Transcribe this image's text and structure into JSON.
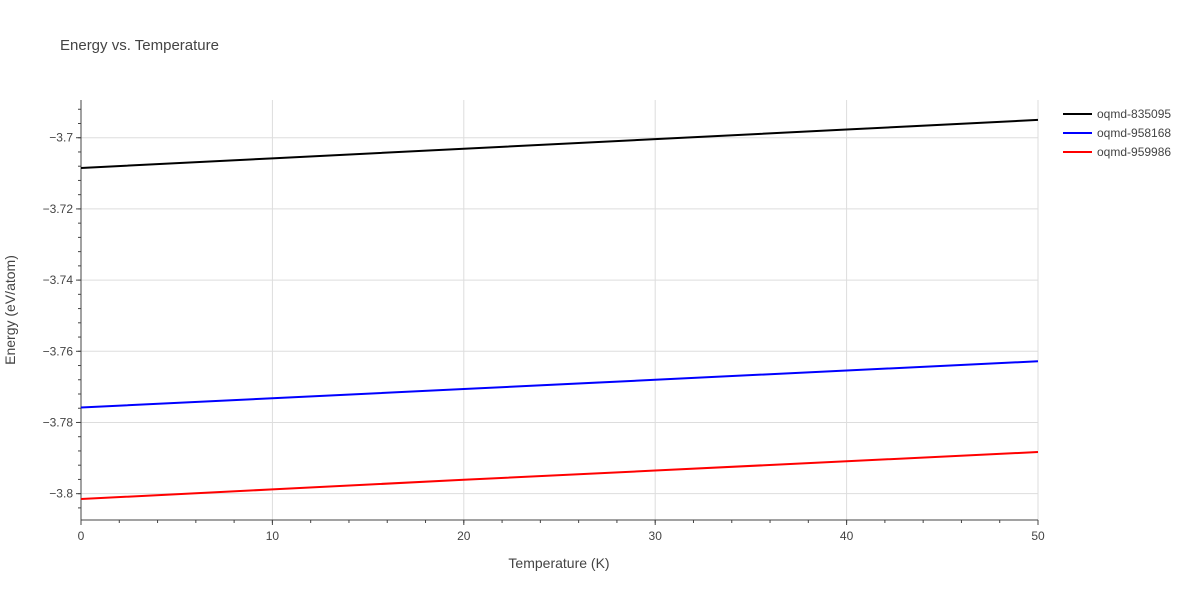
{
  "chart_data": {
    "type": "line",
    "title": "Energy vs. Temperature",
    "xlabel": "Temperature (K)",
    "ylabel": "Energy (eV/atom)",
    "xlim": [
      0,
      50
    ],
    "ylim": [
      -3.8074,
      -3.6894
    ],
    "x_ticks": [
      0,
      10,
      20,
      30,
      40,
      50
    ],
    "x_tick_labels": [
      "0",
      "10",
      "20",
      "30",
      "40",
      "50"
    ],
    "y_ticks": [
      -3.7,
      -3.72,
      -3.74,
      -3.76,
      -3.78,
      -3.8
    ],
    "y_tick_labels": [
      "−3.7",
      "−3.72",
      "−3.74",
      "−3.76",
      "−3.78",
      "−3.8"
    ],
    "grid": true,
    "legend_position": "top-right",
    "series": [
      {
        "name": "oqmd-835095",
        "color": "#000000",
        "x": [
          0,
          10,
          20,
          30,
          40,
          50
        ],
        "values": [
          -3.7085,
          -3.7058,
          -3.7031,
          -3.7004,
          -3.6977,
          -3.695
        ]
      },
      {
        "name": "oqmd-958168",
        "color": "#0000ff",
        "x": [
          0,
          10,
          20,
          30,
          40,
          50
        ],
        "values": [
          -3.7758,
          -3.7732,
          -3.7706,
          -3.768,
          -3.7654,
          -3.7628
        ]
      },
      {
        "name": "oqmd-959986",
        "color": "#ff0000",
        "x": [
          0,
          10,
          20,
          30,
          40,
          50
        ],
        "values": [
          -3.8015,
          -3.7988,
          -3.7961,
          -3.7935,
          -3.7909,
          -3.7883
        ]
      }
    ]
  }
}
